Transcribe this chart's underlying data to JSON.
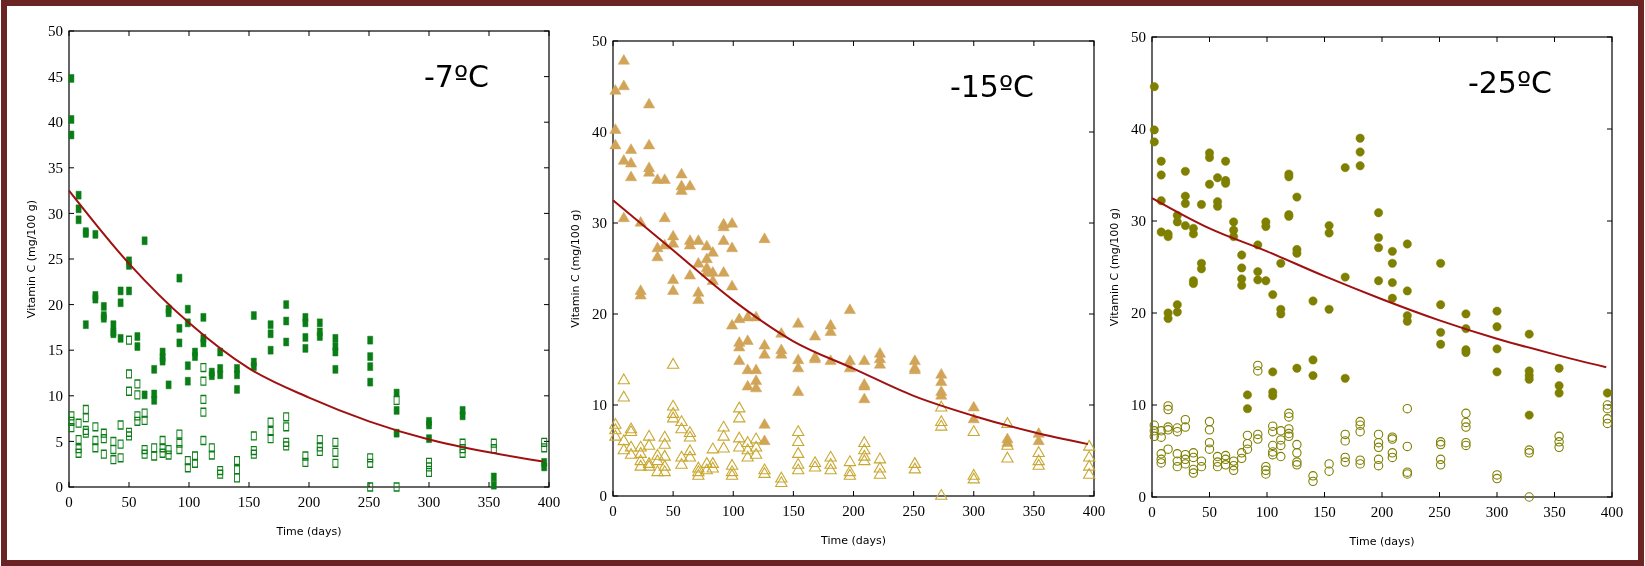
{
  "chart_data": [
    {
      "type": "scatter",
      "xlabel": "Time (days)",
      "ylabel": "Vitamin C (mg/100 g)",
      "annotations": [
        "-7ºC"
      ],
      "xlim": [
        0,
        400
      ],
      "xticks": [
        0,
        50,
        100,
        150,
        200,
        250,
        300,
        350,
        400
      ],
      "ylim": [
        0,
        50
      ],
      "yticks": [
        0,
        5,
        10,
        15,
        20,
        25,
        30,
        35,
        40,
        45,
        50
      ],
      "series": [
        {
          "color": "#0a7d16",
          "marker": "square",
          "x": [
            2,
            2,
            2,
            8,
            8,
            8,
            14,
            14,
            14,
            22,
            22,
            22,
            29,
            29,
            29,
            37,
            37,
            37,
            43,
            43,
            43,
            50,
            50,
            50,
            57,
            57,
            63,
            63,
            71,
            71,
            71,
            78,
            78,
            78,
            83,
            83,
            83,
            92,
            92,
            92,
            99,
            99,
            99,
            99,
            105,
            105,
            112,
            112,
            112,
            119,
            119,
            126,
            126,
            126,
            140,
            140,
            140,
            154,
            154,
            154,
            168,
            168,
            168,
            181,
            181,
            181,
            197,
            197,
            197,
            197,
            209,
            209,
            209,
            222,
            222,
            222,
            222,
            251,
            251,
            251,
            251,
            273,
            273,
            273,
            300,
            300,
            300,
            328,
            328,
            354,
            354,
            396,
            396
          ],
          "values": [
            44.8,
            40.3,
            38.6,
            32,
            30.5,
            29.3,
            28,
            27.8,
            17.8,
            27.7,
            21,
            20.6,
            19.8,
            18.8,
            18.5,
            17.8,
            17,
            16.8,
            21.5,
            20.2,
            16.3,
            24.8,
            24.3,
            21.5,
            16.5,
            15.4,
            27,
            10.1,
            10.2,
            9.5,
            12.9,
            14.8,
            14.2,
            13.8,
            19.5,
            19.1,
            11.2,
            22.9,
            17.4,
            15.8,
            19.5,
            18,
            13.3,
            11.6,
            14.8,
            14.3,
            18.6,
            16.3,
            15.8,
            12.6,
            12.2,
            14.8,
            13,
            12.3,
            13,
            12.3,
            10.7,
            18.8,
            13.7,
            13.2,
            17.8,
            16.8,
            15,
            20,
            18.2,
            15.9,
            18.6,
            18,
            16.4,
            15.2,
            18,
            17,
            16.5,
            16.3,
            15.4,
            14.8,
            12.9,
            16.1,
            14.3,
            13.2,
            11.5,
            10.3,
            8.4,
            5.9,
            7.2,
            6.8,
            5.3,
            8.4,
            7.8,
            1.1,
            0.2,
            2.7,
            2.2
          ]
        },
        {
          "color": "#0a7d16",
          "marker": "square",
          "x": [
            2,
            2,
            2,
            8,
            8,
            8,
            8,
            14,
            14,
            14,
            14,
            22,
            22,
            22,
            29,
            29,
            29,
            37,
            37,
            37,
            43,
            43,
            43,
            50,
            50,
            50,
            50,
            50,
            57,
            57,
            57,
            57,
            63,
            63,
            63,
            63,
            71,
            71,
            78,
            78,
            78,
            83,
            83,
            92,
            92,
            92,
            99,
            99,
            105,
            105,
            112,
            112,
            112,
            112,
            112,
            119,
            119,
            126,
            126,
            140,
            140,
            140,
            154,
            154,
            154,
            168,
            168,
            168,
            181,
            181,
            181,
            181,
            197,
            197,
            209,
            209,
            209,
            222,
            222,
            222,
            251,
            251,
            251,
            273,
            273,
            300,
            300,
            300,
            328,
            328,
            328,
            354,
            354,
            396,
            396
          ],
          "values": [
            7.8,
            7.2,
            6.5,
            7,
            5.2,
            4.2,
            3.7,
            8.5,
            7.6,
            6.2,
            5.9,
            6.6,
            5.1,
            4.3,
            5.9,
            5.3,
            3.6,
            5,
            4.1,
            3,
            6.8,
            4.7,
            3.2,
            16.1,
            12.4,
            10.5,
            6,
            5.6,
            11.3,
            10.1,
            7.8,
            7.2,
            8.1,
            7.3,
            4.1,
            3.6,
            4.3,
            3.4,
            5.1,
            4.3,
            3.7,
            4.1,
            3.5,
            5.8,
            4.8,
            4.1,
            2.9,
            2.1,
            3.4,
            2.6,
            13.1,
            11.6,
            9.6,
            8.2,
            5.1,
            4.3,
            3.5,
            1.8,
            1.4,
            2.9,
            1.9,
            1,
            5.6,
            4,
            3.6,
            7.1,
            6.1,
            5.3,
            7.7,
            6.6,
            4.9,
            4.5,
            3.4,
            2.7,
            5.2,
            4.4,
            3.9,
            4.9,
            3.8,
            2.6,
            3.2,
            2.6,
            0,
            9.5,
            0,
            2.7,
            2.2,
            1.6,
            4.8,
            4.2,
            3.7,
            4.8,
            4.2,
            4.9,
            4.3
          ]
        },
        {
          "type": "line",
          "color": "#a01010",
          "x": [
            0,
            50,
            100,
            150,
            200,
            250,
            300,
            350,
            395
          ],
          "values": [
            32.5,
            24.5,
            18,
            13,
            9.8,
            7.2,
            5.2,
            3.8,
            2.8
          ]
        }
      ]
    },
    {
      "type": "scatter",
      "xlabel": "Time (days)",
      "ylabel": "Vitamin C (mg/100 g)",
      "annotations": [
        "-15ºC"
      ],
      "xlim": [
        0,
        400
      ],
      "xticks": [
        0,
        50,
        100,
        150,
        200,
        250,
        300,
        350,
        400
      ],
      "ylim": [
        0,
        50
      ],
      "yticks": [
        0,
        10,
        20,
        30,
        40,
        50
      ],
      "series": [
        {
          "color": "#d1a458",
          "marker": "triangle",
          "x": [
            2,
            2,
            2,
            9,
            9,
            9,
            9,
            15,
            15,
            15,
            23,
            23,
            23,
            30,
            30,
            30,
            30,
            37,
            37,
            37,
            43,
            43,
            43,
            50,
            50,
            50,
            50,
            57,
            57,
            57,
            64,
            64,
            64,
            64,
            71,
            71,
            71,
            71,
            78,
            78,
            78,
            78,
            83,
            83,
            83,
            92,
            92,
            92,
            92,
            99,
            99,
            99,
            99,
            105,
            105,
            105,
            105,
            112,
            112,
            112,
            112,
            119,
            119,
            119,
            119,
            126,
            126,
            126,
            126,
            126,
            140,
            140,
            140,
            154,
            154,
            154,
            154,
            168,
            168,
            168,
            181,
            181,
            181,
            197,
            197,
            197,
            209,
            209,
            209,
            209,
            222,
            222,
            222,
            251,
            251,
            251,
            273,
            273,
            273,
            273,
            300,
            300,
            328,
            328,
            354,
            354
          ],
          "values": [
            44.5,
            40.2,
            38.5,
            47.8,
            45,
            36.8,
            30.5,
            38,
            36.5,
            35,
            30,
            22.5,
            22,
            43,
            38.5,
            36,
            35.5,
            34.7,
            27.2,
            26.2,
            34.7,
            30.5,
            27.5,
            28.5,
            27.7,
            23.7,
            22.5,
            35.3,
            34,
            33.5,
            34,
            28,
            27.5,
            24.2,
            28,
            25.5,
            22.3,
            21.5,
            27.4,
            26,
            25,
            24.5,
            26.7,
            24.5,
            23.6,
            29.8,
            29.5,
            28,
            24.5,
            29.9,
            27.2,
            23,
            18.7,
            19.4,
            16.8,
            16.3,
            14.8,
            19.6,
            17,
            13.8,
            12,
            19.6,
            13.8,
            12.6,
            11.8,
            28.2,
            16.5,
            15.5,
            7.8,
            6,
            17.8,
            16,
            15.5,
            18.9,
            14.9,
            14,
            11.4,
            17.5,
            15.2,
            15,
            18.7,
            18,
            14.8,
            20.4,
            14.8,
            14,
            14.8,
            12.2,
            12,
            10.6,
            15.6,
            15,
            14.4,
            14.8,
            14,
            13.8,
            13.3,
            12.5,
            11.4,
            11,
            9.7,
            8.4,
            6.2,
            5.8,
            6.8,
            6
          ]
        },
        {
          "color": "#c9a832",
          "marker": "triangle",
          "x": [
            2,
            2,
            2,
            9,
            9,
            9,
            9,
            15,
            15,
            15,
            15,
            23,
            23,
            23,
            23,
            30,
            30,
            30,
            30,
            37,
            37,
            37,
            43,
            43,
            43,
            43,
            43,
            50,
            50,
            50,
            50,
            57,
            57,
            57,
            57,
            64,
            64,
            64,
            64,
            71,
            71,
            71,
            78,
            78,
            83,
            83,
            83,
            92,
            92,
            92,
            99,
            99,
            99,
            105,
            105,
            105,
            105,
            112,
            112,
            112,
            119,
            119,
            119,
            126,
            126,
            140,
            140,
            154,
            154,
            154,
            154,
            154,
            168,
            168,
            181,
            181,
            181,
            197,
            197,
            197,
            209,
            209,
            209,
            209,
            222,
            222,
            222,
            251,
            251,
            273,
            273,
            273,
            273,
            300,
            300,
            300,
            328,
            328,
            328,
            354,
            354,
            354,
            396,
            396,
            396,
            396
          ],
          "values": [
            7.8,
            7.2,
            6.5,
            12.7,
            10.8,
            6,
            5,
            7.3,
            7,
            5.3,
            4.5,
            5.3,
            4.6,
            3.8,
            3.2,
            6.5,
            5.5,
            3.5,
            3.2,
            4.4,
            3.8,
            2.6,
            6.4,
            5.6,
            4.3,
            3.2,
            2.6,
            14.4,
            9.8,
            9,
            8.5,
            8.1,
            7.3,
            4.2,
            3.4,
            6.9,
            6.4,
            4.9,
            4.2,
            3,
            2.6,
            2.2,
            3.5,
            2.8,
            5.1,
            3.5,
            3,
            7.5,
            6.5,
            5.2,
            3.3,
            2.6,
            2.2,
            9.6,
            8.5,
            6.3,
            5.3,
            5.8,
            5,
            4.2,
            6.2,
            5.3,
            4.5,
            2.8,
            2.4,
            1.9,
            1.4,
            7,
            5.9,
            4.6,
            3.4,
            2.8,
            3.6,
            3.1,
            4.2,
            3.4,
            2.8,
            3.7,
            2.6,
            2.2,
            5.8,
            5,
            4.3,
            3.8,
            4,
            3,
            2.3,
            3.5,
            2.9,
            9.7,
            8.1,
            7.6,
            0,
            7,
            2.2,
            1.8,
            7.9,
            5.5,
            4.1,
            4.7,
            3.8,
            3.3,
            5.4,
            4.2,
            3.2,
            2.3
          ]
        },
        {
          "type": "line",
          "color": "#a01010",
          "x": [
            0,
            50,
            100,
            150,
            200,
            250,
            300,
            350,
            395
          ],
          "values": [
            32.5,
            27,
            21.5,
            17,
            14,
            11,
            8.8,
            7,
            5.7
          ]
        }
      ]
    },
    {
      "type": "scatter",
      "xlabel": "Time (days)",
      "ylabel": "Vitamin C (mg/100 g)",
      "annotations": [
        "-25ºC"
      ],
      "xlim": [
        0,
        400
      ],
      "xticks": [
        0,
        50,
        100,
        150,
        200,
        250,
        300,
        350,
        400
      ],
      "ylim": [
        0,
        50
      ],
      "yticks": [
        0,
        10,
        20,
        30,
        40,
        50
      ],
      "series": [
        {
          "color": "#7f7f00",
          "marker": "circle",
          "x": [
            2,
            2,
            2,
            8,
            8,
            8,
            8,
            14,
            14,
            14,
            14,
            22,
            22,
            22,
            22,
            29,
            29,
            29,
            29,
            36,
            36,
            36,
            36,
            43,
            43,
            43,
            50,
            50,
            50,
            57,
            57,
            57,
            64,
            64,
            64,
            71,
            71,
            71,
            78,
            78,
            78,
            78,
            83,
            83,
            92,
            92,
            92,
            99,
            99,
            99,
            105,
            105,
            105,
            105,
            112,
            112,
            112,
            119,
            119,
            119,
            119,
            126,
            126,
            126,
            126,
            140,
            140,
            140,
            154,
            154,
            154,
            168,
            168,
            168,
            181,
            181,
            181,
            197,
            197,
            197,
            197,
            209,
            209,
            209,
            209,
            222,
            222,
            222,
            222,
            251,
            251,
            251,
            251,
            273,
            273,
            273,
            273,
            300,
            300,
            300,
            300,
            328,
            328,
            328,
            328,
            328,
            354,
            354,
            354,
            396
          ],
          "values": [
            44.6,
            39.9,
            38.6,
            36.5,
            35,
            32.2,
            28.8,
            28.6,
            28.3,
            20,
            19.4,
            30.6,
            29.9,
            20.9,
            20.1,
            35.4,
            32.7,
            31.9,
            29.5,
            29.2,
            28.6,
            23.5,
            23.2,
            31.8,
            25.4,
            24.8,
            37.4,
            36.9,
            34,
            34.7,
            32.1,
            31.6,
            36.5,
            34.4,
            34.1,
            29.9,
            29,
            28.3,
            26.3,
            24.9,
            23.7,
            23,
            11.1,
            9.6,
            27.4,
            24.5,
            23.6,
            29.9,
            29.4,
            23.5,
            22,
            13.6,
            11.4,
            11,
            25.4,
            20.4,
            19.9,
            35.1,
            34.8,
            30.7,
            30.5,
            32.6,
            26.9,
            26.5,
            14,
            21.3,
            14.9,
            13.2,
            29.5,
            28.7,
            20.4,
            35.8,
            23.9,
            12.9,
            39,
            37.5,
            36,
            30.9,
            28.2,
            27.1,
            23.5,
            26.7,
            25.4,
            23.3,
            21.6,
            27.5,
            22.4,
            19.7,
            19.1,
            25.4,
            20.9,
            17.9,
            16.6,
            19.9,
            18.3,
            16,
            15.7,
            20.2,
            18.5,
            16.1,
            13.6,
            17.7,
            13.7,
            13.2,
            12.8,
            8.9,
            14,
            12.1,
            11.3,
            11.3
          ]
        },
        {
          "color": "#7f7f00",
          "marker": "circle",
          "x": [
            2,
            2,
            2,
            8,
            8,
            8,
            8,
            8,
            14,
            14,
            14,
            14,
            14,
            22,
            22,
            22,
            22,
            22,
            29,
            29,
            29,
            29,
            29,
            36,
            36,
            36,
            36,
            43,
            43,
            50,
            50,
            50,
            50,
            57,
            57,
            57,
            64,
            64,
            64,
            71,
            71,
            71,
            78,
            78,
            83,
            83,
            83,
            92,
            92,
            92,
            92,
            99,
            99,
            99,
            105,
            105,
            105,
            105,
            105,
            112,
            112,
            112,
            112,
            119,
            119,
            119,
            119,
            119,
            126,
            126,
            126,
            126,
            140,
            140,
            154,
            154,
            168,
            168,
            168,
            168,
            181,
            181,
            181,
            181,
            181,
            197,
            197,
            197,
            197,
            197,
            209,
            209,
            209,
            209,
            222,
            222,
            222,
            222,
            251,
            251,
            251,
            251,
            273,
            273,
            273,
            273,
            273,
            300,
            300,
            328,
            328,
            328,
            354,
            354,
            354,
            396,
            396,
            396,
            396
          ],
          "values": [
            7.8,
            7.2,
            6.6,
            7.2,
            6.5,
            4.7,
            4.1,
            3.7,
            9.9,
            9.5,
            7.6,
            7.3,
            5.2,
            7.5,
            7.1,
            4.7,
            3.9,
            3.3,
            8.4,
            7.6,
            4.6,
            4.1,
            3.6,
            4.8,
            4.3,
            3,
            2.6,
            3.9,
            3.3,
            8.2,
            7.3,
            5.9,
            5.2,
            4.4,
            3.8,
            3.3,
            4.5,
            4.1,
            3.5,
            3.9,
            3.4,
            2.9,
            4.8,
            4.2,
            6.7,
            5.8,
            5.2,
            14.3,
            13.7,
            6.8,
            6.3,
            3.3,
            2.9,
            2.5,
            7.7,
            7.1,
            5.6,
            4.9,
            4.6,
            7.2,
            6.2,
            5.6,
            4.4,
            9.1,
            8.7,
            7.4,
            6.9,
            6.6,
            5.7,
            4.8,
            3.8,
            3.5,
            2.3,
            1.7,
            3.6,
            2.8,
            6.8,
            6.1,
            4.3,
            3.8,
            8.2,
            7.8,
            7.1,
            4,
            3.6,
            6.8,
            5.9,
            5.4,
            4.1,
            3.4,
            6.5,
            6.3,
            4.8,
            4.3,
            9.6,
            5.5,
            2.7,
            2.5,
            6,
            5.7,
            4.1,
            3.5,
            9.1,
            8.1,
            7.6,
            5.9,
            5.6,
            2.4,
            2,
            5.1,
            4.8,
            0,
            6.6,
            6,
            5.4,
            10,
            9.6,
            8.5,
            8
          ]
        },
        {
          "type": "line",
          "color": "#a01010",
          "x": [
            0,
            50,
            100,
            150,
            200,
            250,
            300,
            350,
            395
          ],
          "values": [
            32.5,
            29.2,
            26.7,
            24,
            21.5,
            19.2,
            17.2,
            15.5,
            14.1
          ]
        }
      ]
    }
  ]
}
